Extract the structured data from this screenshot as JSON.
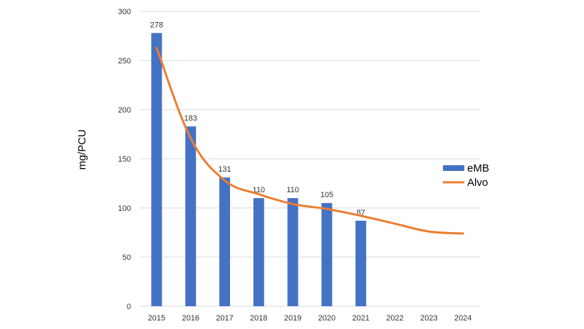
{
  "chart_data": {
    "type": "bar",
    "title": "",
    "xlabel": "",
    "ylabel": "mg/PCU",
    "categories": [
      "2015",
      "2016",
      "2017",
      "2018",
      "2019",
      "2020",
      "2021",
      "2022",
      "2023",
      "2024"
    ],
    "ylim": [
      0,
      300
    ],
    "yticks": [
      "0",
      "50",
      "100",
      "150",
      "200",
      "250",
      "300"
    ],
    "grid": true,
    "legend_position": "right",
    "series": [
      {
        "name": "eMB",
        "type": "bar",
        "color": "#4472C4",
        "values": [
          278,
          183,
          131,
          110,
          110,
          105,
          87,
          null,
          null,
          null
        ],
        "labels": [
          "278",
          "183",
          "131",
          "110",
          "110",
          "105",
          "87",
          "",
          "",
          ""
        ]
      },
      {
        "name": "Alvo",
        "type": "line",
        "color": "#ED7D31",
        "values": [
          263,
          171,
          128,
          114,
          104,
          99,
          92,
          84,
          76,
          74
        ]
      }
    ]
  }
}
